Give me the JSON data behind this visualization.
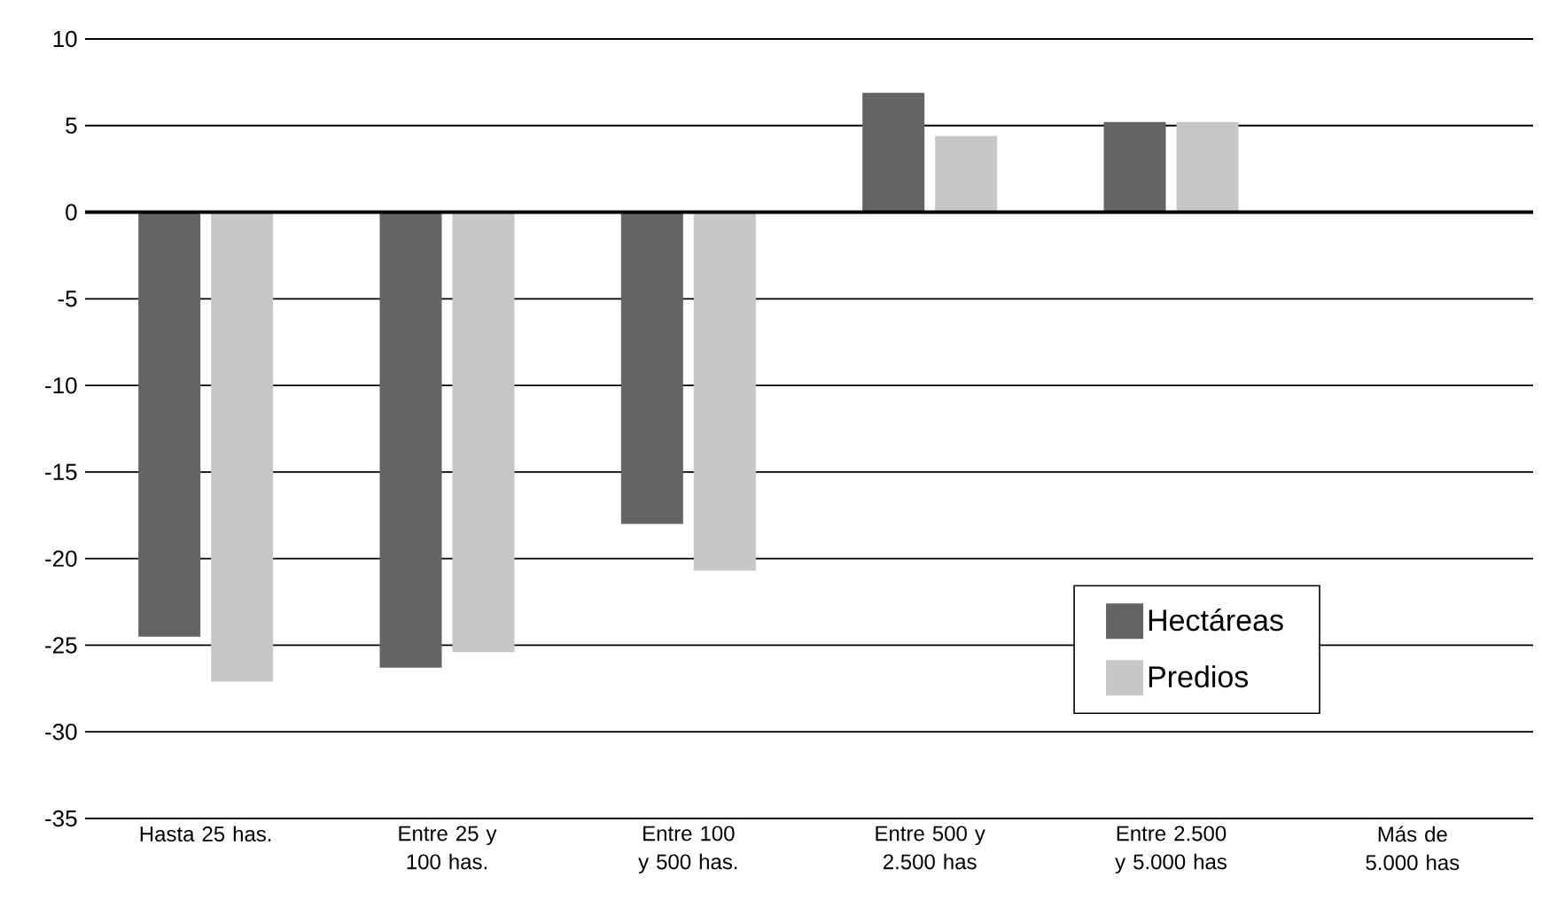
{
  "chart_data": {
    "type": "bar",
    "categories": [
      "Hasta 25 has.",
      "Entre 25 y 100 has.",
      "Entre 100 y 500 has.",
      "Entre 500 y 2.500 has",
      "Entre 2.500 y 5.000 has",
      "Más de 5.000 has"
    ],
    "series": [
      {
        "name": "Hectáreas",
        "color": "#636466",
        "values": [
          -24.5,
          -26.3,
          -18.0,
          6.9,
          5.2,
          null
        ]
      },
      {
        "name": "Predios",
        "color": "#c6c7c9",
        "values": [
          -27.1,
          -25.4,
          -20.7,
          4.4,
          5.2,
          null
        ]
      }
    ],
    "ylim": [
      -35,
      10
    ],
    "yticks": [
      -35,
      -30,
      -25,
      -20,
      -15,
      -10,
      -5,
      0,
      5,
      10
    ],
    "grid": "y",
    "legend": "bottom right"
  }
}
